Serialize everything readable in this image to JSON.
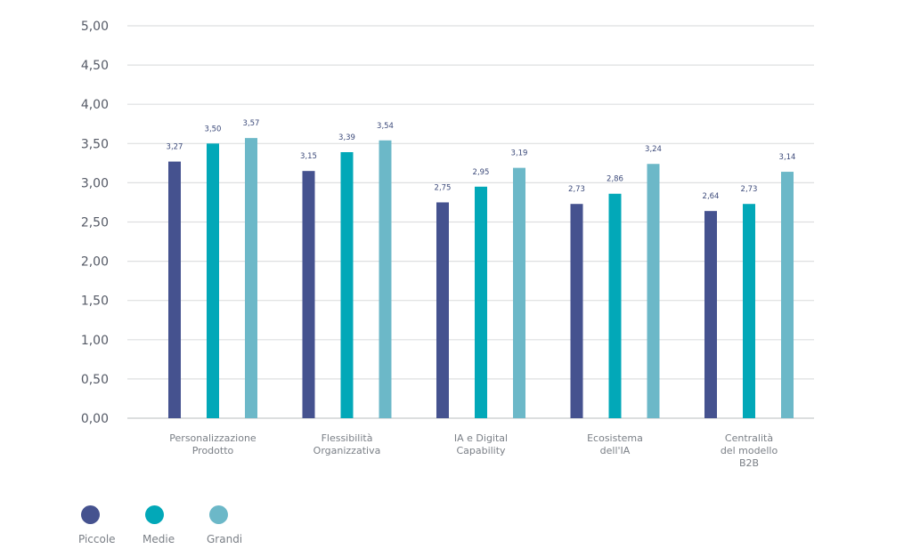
{
  "chart_data": {
    "type": "bar",
    "title": "",
    "xlabel": "",
    "ylabel": "",
    "ylim": [
      0,
      5
    ],
    "grid": true,
    "y_ticks": [
      "0,00",
      "0,50",
      "1,00",
      "1,50",
      "2,00",
      "2,50",
      "3,00",
      "3,50",
      "4,00",
      "4,50",
      "5,00"
    ],
    "y_tick_values": [
      0,
      0.5,
      1,
      1.5,
      2,
      2.5,
      3,
      3.5,
      4,
      4.5,
      5
    ],
    "categories": [
      [
        "Personalizzazione",
        "Prodotto"
      ],
      [
        "Flessibilità",
        "Organizzativa"
      ],
      [
        "IA e Digital",
        "Capability"
      ],
      [
        "Ecosistema",
        "dell'IA"
      ],
      [
        "Centralità",
        "del modello",
        "B2B"
      ]
    ],
    "series": [
      {
        "name": "Piccole",
        "color": "#45528f",
        "values": [
          3.27,
          3.15,
          2.75,
          2.73,
          2.64
        ],
        "labels": [
          "3,27",
          "3,15",
          "2,75",
          "2,73",
          "2,64"
        ]
      },
      {
        "name": "Medie",
        "color": "#02a8b8",
        "values": [
          3.5,
          3.39,
          2.95,
          2.86,
          2.73
        ],
        "labels": [
          "3,50",
          "3,39",
          "2,95",
          "2,86",
          "2,73"
        ]
      },
      {
        "name": "Grandi",
        "color": "#6cb8c8",
        "values": [
          3.57,
          3.54,
          3.19,
          3.24,
          3.14
        ],
        "labels": [
          "3,57",
          "3,54",
          "3,19",
          "3,24",
          "3,14"
        ]
      }
    ],
    "legend_position": "bottom-left"
  },
  "legend": {
    "items": [
      {
        "label": "Piccole",
        "color": "#45528f"
      },
      {
        "label": "Medie",
        "color": "#02a8b8"
      },
      {
        "label": "Grandi",
        "color": "#6cb8c8"
      }
    ]
  }
}
